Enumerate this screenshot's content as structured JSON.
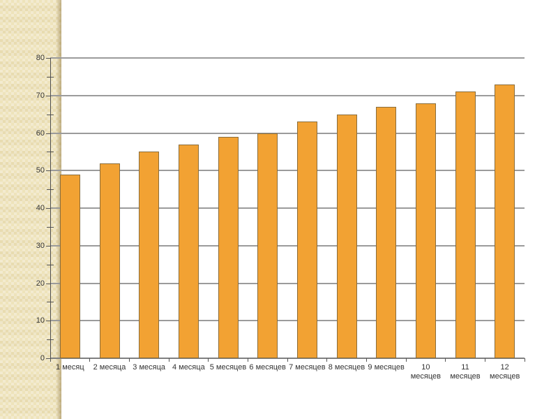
{
  "slide": {
    "background_color": "#ffffff",
    "strip_color": "#eee3bb",
    "strip_edge_shadow_color": "#8c7340"
  },
  "chart_data": {
    "type": "bar",
    "title": "",
    "xlabel": "",
    "ylabel": "",
    "categories": [
      "1 месяц",
      "2 месяца",
      "3 месяца",
      "4 месяца",
      "5 месяцев",
      "6 месяцев",
      "7 месяцев",
      "8 месяцев",
      "9 месяцев",
      "10 месяцев",
      "11 месяцев",
      "12 месяцев"
    ],
    "values": [
      49,
      52,
      55,
      57,
      59,
      60,
      63,
      65,
      67,
      68,
      71,
      73
    ],
    "ylim": [
      0,
      80
    ],
    "yticks": [
      0,
      10,
      20,
      30,
      40,
      50,
      60,
      70,
      80
    ],
    "ytick_minor_step": 5,
    "grid": true,
    "legend": false,
    "xlabel_wrap_from_index": 9,
    "bar_color": "#f2a233",
    "bar_border_color": "#8a6d3b",
    "gridline_color": "#9b9b9b",
    "baseline_color": "#808080",
    "axis_color": "#4d4d4d",
    "tick_color": "#555555",
    "label_color": "#333333"
  }
}
